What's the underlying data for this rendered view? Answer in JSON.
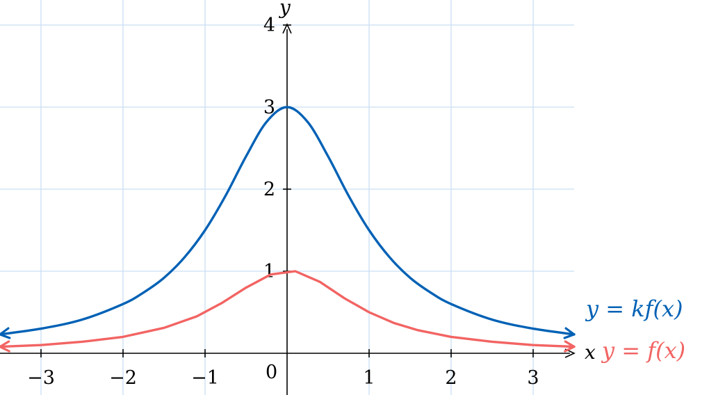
{
  "chart_data": {
    "type": "line",
    "xlabel": "x",
    "ylabel": "y",
    "xlim": [
      -3.5,
      3.5
    ],
    "ylim": [
      -0.5,
      4
    ],
    "grid": true,
    "x_ticks": [
      {
        "value": -3,
        "label": "−3"
      },
      {
        "value": -2,
        "label": "−2"
      },
      {
        "value": -1,
        "label": "−1"
      },
      {
        "value": 1,
        "label": "1"
      },
      {
        "value": 2,
        "label": "2"
      },
      {
        "value": 3,
        "label": "3"
      }
    ],
    "y_ticks": [
      {
        "value": 1,
        "label": "1"
      },
      {
        "value": 2,
        "label": "2"
      },
      {
        "value": 3,
        "label": "3"
      },
      {
        "value": 4,
        "label": "4"
      }
    ],
    "origin_label": "0",
    "series": [
      {
        "name": "y = kf(x)",
        "color": "#0061b5",
        "x": [
          -3.5,
          -3.0,
          -2.5,
          -2.0,
          -1.75,
          -1.5,
          -1.25,
          -1.0,
          -0.75,
          -0.5,
          -0.25,
          0.0,
          0.25,
          0.5,
          0.75,
          1.0,
          1.25,
          1.5,
          1.75,
          2.0,
          2.5,
          3.0,
          3.5
        ],
        "y": [
          0.23,
          0.3,
          0.41,
          0.6,
          0.74,
          0.92,
          1.17,
          1.5,
          1.92,
          2.4,
          2.82,
          3.0,
          2.82,
          2.4,
          1.92,
          1.5,
          1.17,
          0.92,
          0.74,
          0.6,
          0.41,
          0.3,
          0.23
        ]
      },
      {
        "name": "y = f(x)",
        "color": "#f26463",
        "x": [
          -3.5,
          -3.0,
          -2.5,
          -2.0,
          -1.5,
          -1.1,
          -0.8,
          -0.5,
          -0.2,
          0.1,
          0.4,
          0.7,
          1.0,
          1.3,
          1.6,
          2.0,
          2.5,
          3.0,
          3.5
        ],
        "y": [
          0.08,
          0.1,
          0.14,
          0.2,
          0.31,
          0.45,
          0.61,
          0.8,
          0.96,
          1.0,
          0.87,
          0.67,
          0.5,
          0.37,
          0.28,
          0.2,
          0.14,
          0.1,
          0.08
        ]
      }
    ]
  }
}
